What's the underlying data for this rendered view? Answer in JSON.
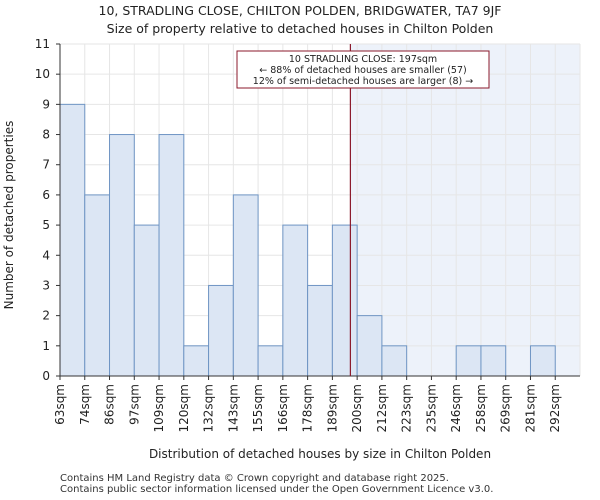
{
  "title_line1": "10, STRADLING CLOSE, CHILTON POLDEN, BRIDGWATER, TA7 9JF",
  "title_line2": "Size of property relative to detached houses in Chilton Polden",
  "footer_line1": "Contains HM Land Registry data © Crown copyright and database right 2025.",
  "footer_line2": "Contains public sector information licensed under the Open Government Licence v3.0.",
  "chart_data": {
    "type": "bar",
    "xlabel": "Distribution of detached houses by size in Chilton Polden",
    "ylabel": "Number of detached properties",
    "ylim": [
      0,
      11
    ],
    "yticks": [
      0,
      1,
      2,
      3,
      4,
      5,
      6,
      7,
      8,
      9,
      10,
      11
    ],
    "categories": [
      "63sqm",
      "74sqm",
      "86sqm",
      "97sqm",
      "109sqm",
      "120sqm",
      "132sqm",
      "143sqm",
      "155sqm",
      "166sqm",
      "178sqm",
      "189sqm",
      "200sqm",
      "212sqm",
      "223sqm",
      "235sqm",
      "246sqm",
      "258sqm",
      "269sqm",
      "281sqm",
      "292sqm"
    ],
    "values": [
      9,
      6,
      8,
      5,
      8,
      1,
      3,
      6,
      1,
      5,
      3,
      5,
      2,
      1,
      0,
      0,
      1,
      1,
      0,
      1,
      0
    ],
    "marker": {
      "value_sqm": 197,
      "line_color": "#8b1a2b",
      "annotation": [
        "10 STRADLING CLOSE: 197sqm",
        "← 88% of detached houses are smaller (57)",
        "12% of semi-detached houses are larger (8) →"
      ]
    },
    "bar_fill": "#dce6f4",
    "bar_edge": "#6f95c4",
    "highlight_fill": "#edf2fa",
    "grid": true
  }
}
